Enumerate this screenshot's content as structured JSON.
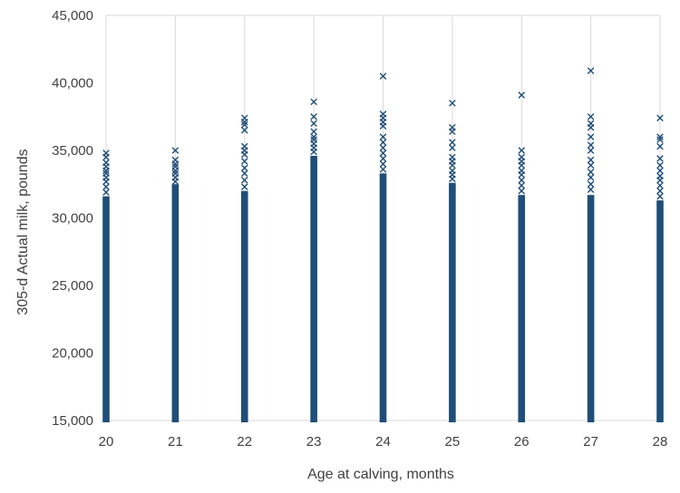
{
  "chart_data": {
    "type": "scatter",
    "title": "",
    "xlabel": "Age at calving, months",
    "ylabel": "305-d Actual milk, pounds",
    "xlim": [
      20,
      28
    ],
    "ylim": [
      15000,
      45000
    ],
    "x_ticks": [
      20,
      21,
      22,
      23,
      24,
      25,
      26,
      27,
      28
    ],
    "y_ticks": [
      15000,
      20000,
      25000,
      30000,
      35000,
      40000,
      45000
    ],
    "y_tick_labels": [
      "15,000",
      "20,000",
      "25,000",
      "30,000",
      "35,000",
      "40,000",
      "45,000"
    ],
    "grid": "vertical",
    "legend": "none",
    "marker": "x",
    "color": "#1f4e79",
    "series": [
      {
        "x": 20,
        "dense_from": 15000,
        "dense_to": 31600,
        "points": [
          31900,
          32300,
          32700,
          33000,
          33300,
          33500,
          33800,
          34100,
          34500,
          34800
        ]
      },
      {
        "x": 21,
        "dense_from": 15000,
        "dense_to": 32500,
        "points": [
          32700,
          33000,
          33300,
          33500,
          33800,
          34000,
          34300,
          35000
        ]
      },
      {
        "x": 22,
        "dense_from": 15000,
        "dense_to": 32000,
        "points": [
          32300,
          32800,
          33300,
          33700,
          34200,
          34700,
          35000,
          35300,
          36500,
          36900,
          37100,
          37400
        ]
      },
      {
        "x": 23,
        "dense_from": 15000,
        "dense_to": 34600,
        "points": [
          34900,
          35200,
          35500,
          35800,
          36000,
          36400,
          37000,
          37500,
          38600
        ]
      },
      {
        "x": 24,
        "dense_from": 15000,
        "dense_to": 33300,
        "points": [
          33600,
          34000,
          34400,
          34800,
          35200,
          35600,
          36000,
          36800,
          37100,
          37400,
          37700,
          40500
        ]
      },
      {
        "x": 25,
        "dense_from": 15000,
        "dense_to": 32600,
        "points": [
          32900,
          33200,
          33500,
          33900,
          34200,
          34500,
          35200,
          35600,
          36400,
          36700,
          38500
        ]
      },
      {
        "x": 26,
        "dense_from": 15000,
        "dense_to": 31700,
        "points": [
          32000,
          32400,
          32800,
          33200,
          33500,
          33900,
          34200,
          34500,
          35000,
          39100
        ]
      },
      {
        "x": 27,
        "dense_from": 15000,
        "dense_to": 31700,
        "points": [
          32100,
          32500,
          33000,
          33400,
          33900,
          34300,
          35000,
          35400,
          36000,
          36700,
          37000,
          37500,
          40900
        ]
      },
      {
        "x": 28,
        "dense_from": 15000,
        "dense_to": 31300,
        "points": [
          31600,
          32000,
          32400,
          32800,
          33100,
          33500,
          33900,
          34400,
          35300,
          35800,
          36000,
          37400
        ]
      }
    ]
  }
}
